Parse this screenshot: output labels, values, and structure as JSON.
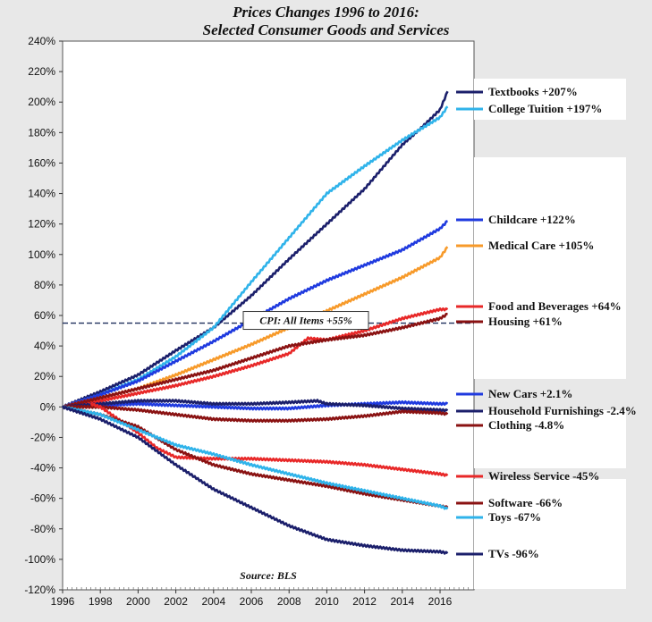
{
  "chart_data": {
    "type": "line",
    "title_line1": "Prices Changes 1996 to 2016:",
    "title_line2": "Selected Consumer Goods and Services",
    "source": "Source: BLS",
    "xlim": [
      1996,
      2017.8
    ],
    "ylim": [
      -120,
      240
    ],
    "y_ticks": [
      240,
      220,
      200,
      180,
      160,
      140,
      120,
      100,
      80,
      60,
      40,
      20,
      0,
      -20,
      -40,
      -60,
      -80,
      -100,
      -120
    ],
    "x_ticks": [
      1996,
      1998,
      2000,
      2002,
      2004,
      2006,
      2008,
      2010,
      2012,
      2014,
      2016
    ],
    "grid": false,
    "reference_line": {
      "label": "CPI: All Items +55%",
      "value": 55,
      "color": "#1f2f5c"
    },
    "series": [
      {
        "name": "Textbooks +207%",
        "color": "#1b1f6b",
        "x": [
          1996,
          1998,
          2000,
          2002,
          2004,
          2006,
          2008,
          2010,
          2012,
          2014,
          2015,
          2016,
          2016.4
        ],
        "y": [
          0,
          10,
          21,
          37,
          52,
          73,
          97,
          120,
          143,
          172,
          183,
          195,
          207
        ]
      },
      {
        "name": "College Tuition +197%",
        "color": "#2fb3ea",
        "x": [
          1996,
          1998,
          2000,
          2002,
          2004,
          2006,
          2008,
          2010,
          2012,
          2014,
          2016,
          2016.4
        ],
        "y": [
          0,
          8,
          18,
          33,
          52,
          82,
          111,
          140,
          158,
          175,
          190,
          197
        ]
      },
      {
        "name": "Childcare +122%",
        "color": "#1f3adf",
        "x": [
          1996,
          1998,
          2000,
          2002,
          2004,
          2006,
          2008,
          2010,
          2012,
          2014,
          2016,
          2016.4
        ],
        "y": [
          0,
          8,
          17,
          30,
          43,
          57,
          71,
          83,
          93,
          103,
          117,
          122
        ]
      },
      {
        "name": "Medical Care +105%",
        "color": "#f79a2a",
        "x": [
          1996,
          1998,
          2000,
          2002,
          2004,
          2006,
          2008,
          2010,
          2012,
          2014,
          2016,
          2016.4
        ],
        "y": [
          0,
          6,
          12,
          21,
          31,
          41,
          52,
          63,
          74,
          85,
          98,
          105
        ]
      },
      {
        "name": "Food and Beverages +64%",
        "color": "#e82828",
        "x": [
          1996,
          1998,
          2000,
          2002,
          2004,
          2006,
          2008,
          2009,
          2010,
          2012,
          2014,
          2016,
          2016.4
        ],
        "y": [
          0,
          4,
          9,
          14,
          20,
          27,
          35,
          45,
          44,
          50,
          58,
          64,
          64
        ]
      },
      {
        "name": "Housing +61%",
        "color": "#8a1212",
        "x": [
          1996,
          1998,
          2000,
          2002,
          2004,
          2006,
          2008,
          2010,
          2012,
          2014,
          2016,
          2016.4
        ],
        "y": [
          0,
          6,
          12,
          18,
          24,
          32,
          40,
          44,
          47,
          52,
          58,
          61
        ]
      },
      {
        "name": "New Cars +2.1%",
        "color": "#1f3adf",
        "x": [
          1996,
          1998,
          2000,
          2002,
          2004,
          2006,
          2008,
          2010,
          2012,
          2014,
          2016,
          2016.4
        ],
        "y": [
          0,
          1,
          2,
          1,
          0,
          -1,
          -1,
          1,
          2,
          3,
          2,
          2.1
        ]
      },
      {
        "name": "Household Furnishings -2.4%",
        "color": "#1b1f6b",
        "x": [
          1996,
          1998,
          2000,
          2002,
          2004,
          2006,
          2008,
          2009.5,
          2010,
          2012,
          2014,
          2016,
          2016.4
        ],
        "y": [
          0,
          2,
          4,
          4,
          2,
          2,
          3,
          4,
          2,
          1,
          -1,
          -2,
          -2.4
        ]
      },
      {
        "name": "Clothing -4.8%",
        "color": "#8a1212",
        "x": [
          1996,
          1998,
          2000,
          2002,
          2004,
          2006,
          2008,
          2010,
          2012,
          2014,
          2016,
          2016.4
        ],
        "y": [
          0,
          0,
          -2,
          -5,
          -8,
          -9,
          -9,
          -8,
          -6,
          -3,
          -4,
          -4.8
        ]
      },
      {
        "name": "Wireless Service -45%",
        "color": "#e82828",
        "x": [
          1997.5,
          1998,
          2000,
          2001,
          2002,
          2004,
          2006,
          2008,
          2010,
          2012,
          2014,
          2016,
          2016.4
        ],
        "y": [
          2,
          0,
          -17,
          -27,
          -33,
          -34,
          -34,
          -35,
          -36,
          -38,
          -41,
          -44,
          -45
        ]
      },
      {
        "name": "Software -66%",
        "color": "#8a1212",
        "x": [
          1996,
          1998,
          2000,
          2002,
          2004,
          2006,
          2008,
          2010,
          2012,
          2014,
          2016,
          2016.4
        ],
        "y": [
          0,
          -5,
          -13,
          -28,
          -38,
          -44,
          -48,
          -52,
          -57,
          -61,
          -65,
          -66
        ]
      },
      {
        "name": "Toys -67%",
        "color": "#2fb3ea",
        "x": [
          1996,
          1998,
          2000,
          2002,
          2004,
          2006,
          2008,
          2010,
          2012,
          2014,
          2016,
          2016.4
        ],
        "y": [
          0,
          -5,
          -15,
          -25,
          -31,
          -38,
          -44,
          -50,
          -55,
          -60,
          -65,
          -67
        ]
      },
      {
        "name": "TVs -96%",
        "color": "#1b1f6b",
        "x": [
          1996,
          1998,
          2000,
          2002,
          2004,
          2006,
          2008,
          2010,
          2012,
          2014,
          2016,
          2016.4
        ],
        "y": [
          0,
          -8,
          -20,
          -38,
          -54,
          -66,
          -78,
          -87,
          -91,
          -94,
          -95,
          -96
        ]
      }
    ]
  }
}
